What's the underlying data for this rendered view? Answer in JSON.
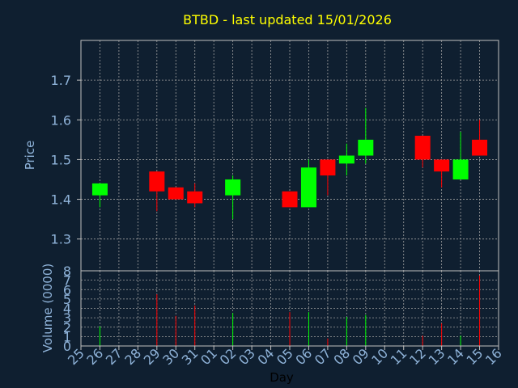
{
  "colors": {
    "background": "#0f1f30",
    "title": "#ffff00",
    "axis_text": "#8fb3d9",
    "frame": "#c0c0c0",
    "grid": "#a0a0a0",
    "up": "#00ff00",
    "down": "#ff0000"
  },
  "chart_data": [
    {
      "type": "candlestick",
      "title": "BTBD - last updated 15/01/2026",
      "ylabel": "Price",
      "ylim": [
        1.22,
        1.8
      ],
      "yticks": [
        1.3,
        1.4,
        1.5,
        1.6,
        1.7
      ],
      "ytick_labels": [
        "1.3",
        "1.4",
        "1.5",
        "1.6",
        "1.7"
      ],
      "x_labels": [
        "25",
        "26",
        "27",
        "28",
        "29",
        "30",
        "31",
        "01",
        "02",
        "03",
        "04",
        "05",
        "06",
        "07",
        "08",
        "09",
        "10",
        "11",
        "12",
        "13",
        "14",
        "15",
        "16"
      ],
      "grid": true,
      "candles": [
        {
          "day": "26",
          "open": 1.41,
          "close": 1.44,
          "high": 1.44,
          "low": 1.38
        },
        {
          "day": "29",
          "open": 1.47,
          "close": 1.42,
          "high": 1.47,
          "low": 1.37
        },
        {
          "day": "30",
          "open": 1.43,
          "close": 1.4,
          "high": 1.43,
          "low": 1.4
        },
        {
          "day": "31",
          "open": 1.42,
          "close": 1.39,
          "high": 1.44,
          "low": 1.38
        },
        {
          "day": "02",
          "open": 1.41,
          "close": 1.45,
          "high": 1.46,
          "low": 1.35
        },
        {
          "day": "05",
          "open": 1.42,
          "close": 1.38,
          "high": 1.42,
          "low": 1.38
        },
        {
          "day": "06",
          "open": 1.38,
          "close": 1.48,
          "high": 1.5,
          "low": 1.38
        },
        {
          "day": "07",
          "open": 1.5,
          "close": 1.46,
          "high": 1.5,
          "low": 1.41
        },
        {
          "day": "08",
          "open": 1.49,
          "close": 1.51,
          "high": 1.54,
          "low": 1.46
        },
        {
          "day": "09",
          "open": 1.51,
          "close": 1.55,
          "high": 1.63,
          "low": 1.49
        },
        {
          "day": "12",
          "open": 1.56,
          "close": 1.5,
          "high": 1.56,
          "low": 1.48
        },
        {
          "day": "13",
          "open": 1.5,
          "close": 1.47,
          "high": 1.5,
          "low": 1.43
        },
        {
          "day": "14",
          "open": 1.45,
          "close": 1.5,
          "high": 1.57,
          "low": 1.45
        },
        {
          "day": "15",
          "open": 1.55,
          "close": 1.51,
          "high": 1.6,
          "low": 1.51
        }
      ]
    },
    {
      "type": "bar",
      "ylabel": "Volume (0000)",
      "xlabel": "Day",
      "ylim": [
        0,
        8
      ],
      "yticks": [
        0,
        1,
        2,
        3,
        4,
        5,
        6,
        7,
        8
      ],
      "ytick_labels": [
        "0",
        "1",
        "2",
        "3",
        "4",
        "5",
        "6",
        "7",
        "8"
      ],
      "x_labels": [
        "25",
        "26",
        "27",
        "28",
        "29",
        "30",
        "31",
        "01",
        "02",
        "03",
        "04",
        "05",
        "06",
        "07",
        "08",
        "09",
        "10",
        "11",
        "12",
        "13",
        "14",
        "15",
        "16"
      ],
      "grid": true,
      "bars": [
        {
          "day": "26",
          "value": 2.1,
          "direction": "up"
        },
        {
          "day": "29",
          "value": 5.5,
          "direction": "down"
        },
        {
          "day": "30",
          "value": 3.2,
          "direction": "down"
        },
        {
          "day": "31",
          "value": 4.3,
          "direction": "down"
        },
        {
          "day": "02",
          "value": 3.5,
          "direction": "up"
        },
        {
          "day": "05",
          "value": 3.6,
          "direction": "down"
        },
        {
          "day": "06",
          "value": 3.6,
          "direction": "up"
        },
        {
          "day": "07",
          "value": 0.8,
          "direction": "down"
        },
        {
          "day": "08",
          "value": 3.1,
          "direction": "up"
        },
        {
          "day": "09",
          "value": 3.3,
          "direction": "up"
        },
        {
          "day": "12",
          "value": 1.1,
          "direction": "down"
        },
        {
          "day": "13",
          "value": 2.4,
          "direction": "down"
        },
        {
          "day": "14",
          "value": 1.1,
          "direction": "up"
        },
        {
          "day": "15",
          "value": 7.5,
          "direction": "down"
        }
      ]
    }
  ]
}
